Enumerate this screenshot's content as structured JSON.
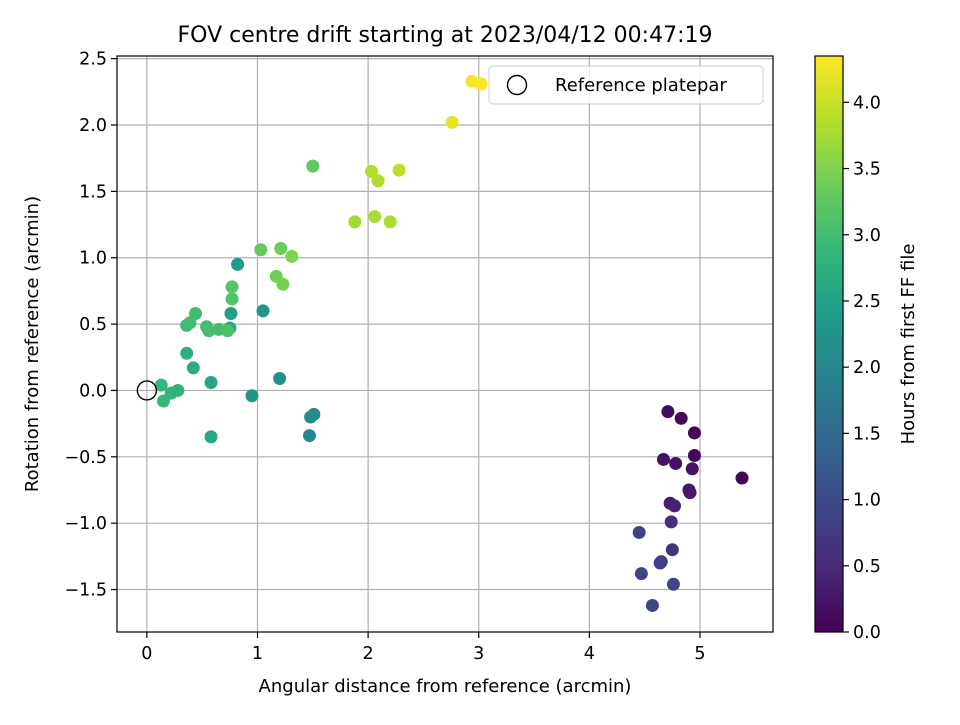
{
  "chart_data": {
    "type": "scatter",
    "title": "FOV centre drift starting at 2023/04/12 00:47:19",
    "xlabel": "Angular distance from reference (arcmin)",
    "ylabel": "Rotation from reference (arcmin)",
    "xlim": [
      -0.27,
      5.66
    ],
    "ylim": [
      -1.82,
      2.52
    ],
    "xticks": [
      0,
      1,
      2,
      3,
      4,
      5
    ],
    "xtick_labels": [
      "0",
      "1",
      "2",
      "3",
      "4",
      "5"
    ],
    "yticks": [
      -1.5,
      -1.0,
      -0.5,
      0.0,
      0.5,
      1.0,
      1.5,
      2.0,
      2.5
    ],
    "ytick_labels": [
      "−1.5",
      "−1.0",
      "−0.5",
      "0.0",
      "0.5",
      "1.0",
      "1.5",
      "2.0",
      "2.5"
    ],
    "grid": true,
    "legend": {
      "placement": "top-right",
      "entries": [
        "Reference platepar"
      ]
    },
    "reference_point": {
      "label": "Reference platepar",
      "x": 0,
      "y": 0,
      "marker": "open-circle"
    },
    "colorbar": {
      "label": "Hours from first FF file",
      "colormap": "viridis",
      "range": [
        0,
        4.35
      ],
      "ticks": [
        0.0,
        0.5,
        1.0,
        1.5,
        2.0,
        2.5,
        3.0,
        3.5,
        4.0
      ],
      "tick_labels": [
        "0.0",
        "0.5",
        "1.0",
        "1.5",
        "2.0",
        "2.5",
        "3.0",
        "3.5",
        "4.0"
      ],
      "colors": [
        "#440154",
        "#482878",
        "#3e4989",
        "#31688e",
        "#26828e",
        "#1f9e89",
        "#35b779",
        "#6ece58",
        "#b5de2b",
        "#fde725"
      ]
    },
    "points": [
      {
        "x": 4.95,
        "y": -0.32,
        "hours": 0.05
      },
      {
        "x": 5.38,
        "y": -0.66,
        "hours": 0.05
      },
      {
        "x": 4.95,
        "y": -0.49,
        "hours": 0.05
      },
      {
        "x": 4.83,
        "y": -0.21,
        "hours": 0.1
      },
      {
        "x": 4.71,
        "y": -0.16,
        "hours": 0.15
      },
      {
        "x": 4.67,
        "y": -0.52,
        "hours": 0.2
      },
      {
        "x": 4.78,
        "y": -0.55,
        "hours": 0.2
      },
      {
        "x": 4.93,
        "y": -0.59,
        "hours": 0.2
      },
      {
        "x": 4.9,
        "y": -0.75,
        "hours": 0.25
      },
      {
        "x": 4.91,
        "y": -0.77,
        "hours": 0.3
      },
      {
        "x": 4.73,
        "y": -0.85,
        "hours": 0.35
      },
      {
        "x": 4.77,
        "y": -0.87,
        "hours": 0.4
      },
      {
        "x": 4.74,
        "y": -0.99,
        "hours": 0.55
      },
      {
        "x": 4.75,
        "y": -1.2,
        "hours": 0.65
      },
      {
        "x": 4.65,
        "y": -1.29,
        "hours": 0.75
      },
      {
        "x": 4.64,
        "y": -1.3,
        "hours": 0.8
      },
      {
        "x": 4.45,
        "y": -1.07,
        "hours": 0.85
      },
      {
        "x": 4.47,
        "y": -1.38,
        "hours": 0.9
      },
      {
        "x": 4.76,
        "y": -1.46,
        "hours": 0.9
      },
      {
        "x": 4.57,
        "y": -1.62,
        "hours": 0.95
      },
      {
        "x": 1.47,
        "y": -0.34,
        "hours": 2.05
      },
      {
        "x": 1.51,
        "y": -0.18,
        "hours": 2.1
      },
      {
        "x": 1.48,
        "y": -0.2,
        "hours": 2.15
      },
      {
        "x": 1.2,
        "y": 0.09,
        "hours": 2.2
      },
      {
        "x": 1.05,
        "y": 0.6,
        "hours": 2.25
      },
      {
        "x": 0.95,
        "y": -0.04,
        "hours": 2.3
      },
      {
        "x": 0.82,
        "y": 0.95,
        "hours": 2.35
      },
      {
        "x": 0.76,
        "y": 0.58,
        "hours": 2.45
      },
      {
        "x": 0.75,
        "y": 0.47,
        "hours": 2.5
      },
      {
        "x": 0.58,
        "y": 0.06,
        "hours": 2.55
      },
      {
        "x": 0.58,
        "y": -0.35,
        "hours": 2.6
      },
      {
        "x": 0.42,
        "y": 0.17,
        "hours": 2.7
      },
      {
        "x": 0.36,
        "y": 0.28,
        "hours": 2.75
      },
      {
        "x": 0.28,
        "y": 0.0,
        "hours": 2.8
      },
      {
        "x": 0.22,
        "y": -0.02,
        "hours": 2.85
      },
      {
        "x": 0.13,
        "y": 0.04,
        "hours": 2.9
      },
      {
        "x": 0.15,
        "y": -0.08,
        "hours": 2.9
      },
      {
        "x": 0.36,
        "y": 0.49,
        "hours": 2.95
      },
      {
        "x": 0.39,
        "y": 0.51,
        "hours": 3.0
      },
      {
        "x": 0.44,
        "y": 0.58,
        "hours": 3.0
      },
      {
        "x": 0.54,
        "y": 0.48,
        "hours": 3.0
      },
      {
        "x": 0.56,
        "y": 0.45,
        "hours": 3.05
      },
      {
        "x": 0.65,
        "y": 0.46,
        "hours": 3.05
      },
      {
        "x": 0.73,
        "y": 0.45,
        "hours": 3.1
      },
      {
        "x": 0.77,
        "y": 0.69,
        "hours": 3.15
      },
      {
        "x": 0.77,
        "y": 0.78,
        "hours": 3.2
      },
      {
        "x": 1.5,
        "y": 1.69,
        "hours": 3.25
      },
      {
        "x": 1.03,
        "y": 1.06,
        "hours": 3.3
      },
      {
        "x": 1.21,
        "y": 1.07,
        "hours": 3.35
      },
      {
        "x": 1.17,
        "y": 0.86,
        "hours": 3.4
      },
      {
        "x": 1.23,
        "y": 0.8,
        "hours": 3.45
      },
      {
        "x": 1.31,
        "y": 1.01,
        "hours": 3.5
      },
      {
        "x": 1.88,
        "y": 1.27,
        "hours": 3.75
      },
      {
        "x": 2.06,
        "y": 1.31,
        "hours": 3.8
      },
      {
        "x": 2.2,
        "y": 1.27,
        "hours": 3.8
      },
      {
        "x": 2.03,
        "y": 1.65,
        "hours": 3.85
      },
      {
        "x": 2.09,
        "y": 1.58,
        "hours": 3.85
      },
      {
        "x": 2.28,
        "y": 1.66,
        "hours": 3.9
      },
      {
        "x": 2.76,
        "y": 2.02,
        "hours": 4.2
      },
      {
        "x": 2.94,
        "y": 2.33,
        "hours": 4.3
      },
      {
        "x": 3.02,
        "y": 2.31,
        "hours": 4.35
      }
    ]
  }
}
